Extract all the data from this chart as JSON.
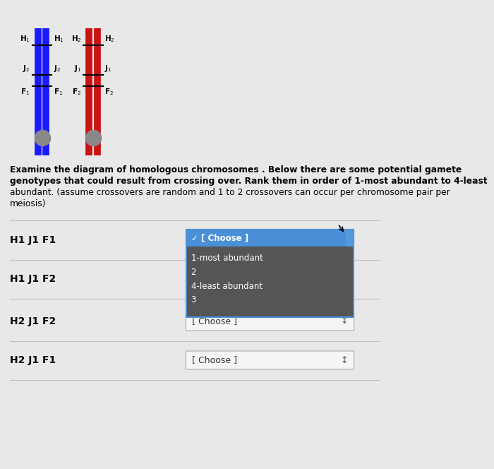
{
  "bg_color": "#e8e8e8",
  "chrom1_color": "#1a1aff",
  "chrom2_color": "#cc1111",
  "centromere_color": "#888888",
  "rows": [
    "H1 J1 F1",
    "H1 J1 F2",
    "H2 J1 F2",
    "H2 J1 F1"
  ],
  "dropdown_open_items": [
    "[ Choose ]",
    "1-most abundant",
    "2",
    "4-least abundant",
    "3"
  ],
  "choose_text": "[ Choose ]",
  "dropdown_bg": "#555555",
  "dropdown_selected_bg": "#4a90d9",
  "title_text_line1": "Examine the diagram of homologous chromosomes . Below there are some potential gamete",
  "title_text_line2": "genotypes that could result from crossing over. Rank them in order of 1-most abundant to 4-least",
  "title_text_line3": "abundant. (assume crossovers are random and 1 to 2 crossovers can occur per chromosome pair per",
  "title_text_line4": "meiosis)"
}
